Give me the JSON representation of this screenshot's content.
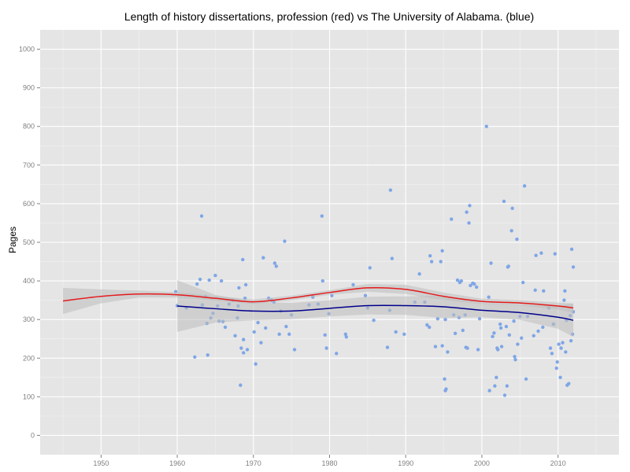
{
  "chart_data": {
    "type": "scatter",
    "title": "Length of history dissertations, profession (red) vs The University of Alabama. (blue)",
    "xlabel": "",
    "ylabel": "Pages",
    "xlim": [
      1942,
      2018
    ],
    "ylim": [
      -50,
      1050
    ],
    "x_ticks": [
      1950,
      1960,
      1970,
      1980,
      1990,
      2000,
      2010
    ],
    "y_ticks": [
      0,
      100,
      200,
      300,
      400,
      500,
      600,
      700,
      800,
      900,
      1000
    ],
    "grid": true,
    "colors": {
      "panel": "#e5e5e5",
      "grid_major": "#ffffff",
      "grid_minor": "#f2f2f2",
      "points": "#7fa6e6",
      "band": "#bdbdbd",
      "profession_line": "#e41a1c",
      "alabama_line": "#00008b"
    },
    "series": [
      {
        "type": "smooth",
        "color": "#e41a1c",
        "x": [
          1945,
          1950,
          1955,
          1960,
          1965,
          1970,
          1975,
          1980,
          1985,
          1990,
          1995,
          2000,
          2005,
          2010,
          2012
        ],
        "y": [
          348,
          360,
          366,
          364,
          355,
          346,
          356,
          370,
          382,
          378,
          360,
          347,
          343,
          335,
          330
        ],
        "band_x": [
          1945,
          1950,
          1955,
          1960,
          1965,
          1970,
          1975,
          1980,
          1985,
          1990,
          1995,
          2000,
          2005,
          2010,
          2012
        ],
        "band_lower": [
          314,
          342,
          357,
          357,
          349,
          340,
          350,
          364,
          372,
          366,
          350,
          340,
          336,
          326,
          318
        ],
        "band_upper": [
          382,
          378,
          375,
          371,
          361,
          352,
          362,
          376,
          392,
          390,
          370,
          354,
          350,
          344,
          342
        ]
      },
      {
        "type": "smooth",
        "color": "#00008b",
        "x": [
          1960,
          1965,
          1970,
          1975,
          1980,
          1985,
          1990,
          1995,
          2000,
          2005,
          2010,
          2012
        ],
        "y": [
          335,
          328,
          322,
          322,
          329,
          336,
          336,
          333,
          324,
          318,
          306,
          298
        ],
        "band_x": [
          1960,
          1965,
          1970,
          1975,
          1980,
          1985,
          1990,
          1995,
          2000,
          2005,
          2010,
          2012
        ],
        "band_lower": [
          268,
          292,
          298,
          301,
          308,
          313,
          312,
          304,
          306,
          299,
          276,
          255
        ],
        "band_upper": [
          402,
          364,
          346,
          343,
          350,
          359,
          360,
          362,
          342,
          337,
          336,
          341
        ]
      }
    ],
    "points": [
      {
        "x": 1959.8,
        "y": 372
      },
      {
        "x": 1960.0,
        "y": 336
      },
      {
        "x": 1961.2,
        "y": 330
      },
      {
        "x": 1962.3,
        "y": 203
      },
      {
        "x": 1962.6,
        "y": 392
      },
      {
        "x": 1963.0,
        "y": 404
      },
      {
        "x": 1963.2,
        "y": 568
      },
      {
        "x": 1963.3,
        "y": 338
      },
      {
        "x": 1963.7,
        "y": 360
      },
      {
        "x": 1963.9,
        "y": 290
      },
      {
        "x": 1964.0,
        "y": 208
      },
      {
        "x": 1964.2,
        "y": 402
      },
      {
        "x": 1964.4,
        "y": 304
      },
      {
        "x": 1964.7,
        "y": 316
      },
      {
        "x": 1965.0,
        "y": 414
      },
      {
        "x": 1965.3,
        "y": 335
      },
      {
        "x": 1965.5,
        "y": 296
      },
      {
        "x": 1965.8,
        "y": 400
      },
      {
        "x": 1966.0,
        "y": 295
      },
      {
        "x": 1966.3,
        "y": 280
      },
      {
        "x": 1966.8,
        "y": 340
      },
      {
        "x": 1967.3,
        "y": 350
      },
      {
        "x": 1967.6,
        "y": 258
      },
      {
        "x": 1967.9,
        "y": 304
      },
      {
        "x": 1968.0,
        "y": 335
      },
      {
        "x": 1968.1,
        "y": 382
      },
      {
        "x": 1968.3,
        "y": 130
      },
      {
        "x": 1968.4,
        "y": 226
      },
      {
        "x": 1968.6,
        "y": 455
      },
      {
        "x": 1968.7,
        "y": 214
      },
      {
        "x": 1968.9,
        "y": 355
      },
      {
        "x": 1969.0,
        "y": 390
      },
      {
        "x": 1969.2,
        "y": 222
      },
      {
        "x": 1968.7,
        "y": 248
      },
      {
        "x": 1970.1,
        "y": 268
      },
      {
        "x": 1970.3,
        "y": 185
      },
      {
        "x": 1970.6,
        "y": 292
      },
      {
        "x": 1971.0,
        "y": 240
      },
      {
        "x": 1971.3,
        "y": 460
      },
      {
        "x": 1971.6,
        "y": 278
      },
      {
        "x": 1972.0,
        "y": 355
      },
      {
        "x": 1972.4,
        "y": 350
      },
      {
        "x": 1972.7,
        "y": 345
      },
      {
        "x": 1972.8,
        "y": 446
      },
      {
        "x": 1973.0,
        "y": 438
      },
      {
        "x": 1973.4,
        "y": 262
      },
      {
        "x": 1973.6,
        "y": 322
      },
      {
        "x": 1974.1,
        "y": 503
      },
      {
        "x": 1974.3,
        "y": 282
      },
      {
        "x": 1974.7,
        "y": 262
      },
      {
        "x": 1975.0,
        "y": 312
      },
      {
        "x": 1975.4,
        "y": 222
      },
      {
        "x": 1977.3,
        "y": 338
      },
      {
        "x": 1977.8,
        "y": 358
      },
      {
        "x": 1978.5,
        "y": 340
      },
      {
        "x": 1979.0,
        "y": 568
      },
      {
        "x": 1979.1,
        "y": 400
      },
      {
        "x": 1979.4,
        "y": 260
      },
      {
        "x": 1979.6,
        "y": 226
      },
      {
        "x": 1979.9,
        "y": 315
      },
      {
        "x": 1980.3,
        "y": 362
      },
      {
        "x": 1980.9,
        "y": 212
      },
      {
        "x": 1982.1,
        "y": 262
      },
      {
        "x": 1982.2,
        "y": 255
      },
      {
        "x": 1983.1,
        "y": 390
      },
      {
        "x": 1984.7,
        "y": 362
      },
      {
        "x": 1985.0,
        "y": 330
      },
      {
        "x": 1985.3,
        "y": 434
      },
      {
        "x": 1985.8,
        "y": 298
      },
      {
        "x": 1987.6,
        "y": 228
      },
      {
        "x": 1987.9,
        "y": 324
      },
      {
        "x": 1988.0,
        "y": 635
      },
      {
        "x": 1988.2,
        "y": 458
      },
      {
        "x": 1988.7,
        "y": 268
      },
      {
        "x": 1989.8,
        "y": 262
      },
      {
        "x": 1991.2,
        "y": 345
      },
      {
        "x": 1991.8,
        "y": 418
      },
      {
        "x": 1992.5,
        "y": 345
      },
      {
        "x": 1992.8,
        "y": 286
      },
      {
        "x": 1993.1,
        "y": 280
      },
      {
        "x": 1993.2,
        "y": 465
      },
      {
        "x": 1993.4,
        "y": 450
      },
      {
        "x": 1993.9,
        "y": 230
      },
      {
        "x": 1994.2,
        "y": 302
      },
      {
        "x": 1994.6,
        "y": 450
      },
      {
        "x": 1994.8,
        "y": 478
      },
      {
        "x": 1994.8,
        "y": 232
      },
      {
        "x": 1995.1,
        "y": 146
      },
      {
        "x": 1995.2,
        "y": 300
      },
      {
        "x": 1995.2,
        "y": 116
      },
      {
        "x": 1995.3,
        "y": 120
      },
      {
        "x": 1995.5,
        "y": 216
      },
      {
        "x": 1996.0,
        "y": 560
      },
      {
        "x": 1996.3,
        "y": 312
      },
      {
        "x": 1996.5,
        "y": 264
      },
      {
        "x": 1996.8,
        "y": 402
      },
      {
        "x": 1997.0,
        "y": 305
      },
      {
        "x": 1997.1,
        "y": 396
      },
      {
        "x": 1997.3,
        "y": 400
      },
      {
        "x": 1997.5,
        "y": 272
      },
      {
        "x": 1997.8,
        "y": 312
      },
      {
        "x": 1997.9,
        "y": 228
      },
      {
        "x": 1998.0,
        "y": 578
      },
      {
        "x": 1998.1,
        "y": 226
      },
      {
        "x": 1998.3,
        "y": 550
      },
      {
        "x": 1998.4,
        "y": 595
      },
      {
        "x": 1998.5,
        "y": 388
      },
      {
        "x": 1998.8,
        "y": 394
      },
      {
        "x": 1999.0,
        "y": 392
      },
      {
        "x": 1999.3,
        "y": 384
      },
      {
        "x": 1999.5,
        "y": 222
      },
      {
        "x": 1999.7,
        "y": 302
      },
      {
        "x": 2000.6,
        "y": 800
      },
      {
        "x": 2000.9,
        "y": 358
      },
      {
        "x": 2001.0,
        "y": 116
      },
      {
        "x": 2001.2,
        "y": 446
      },
      {
        "x": 2001.4,
        "y": 256
      },
      {
        "x": 2001.6,
        "y": 265
      },
      {
        "x": 2001.7,
        "y": 128
      },
      {
        "x": 2001.9,
        "y": 150
      },
      {
        "x": 2002.0,
        "y": 226
      },
      {
        "x": 2002.1,
        "y": 222
      },
      {
        "x": 2002.4,
        "y": 288
      },
      {
        "x": 2002.5,
        "y": 278
      },
      {
        "x": 2002.6,
        "y": 230
      },
      {
        "x": 2002.9,
        "y": 606
      },
      {
        "x": 2003.0,
        "y": 104
      },
      {
        "x": 2003.2,
        "y": 282
      },
      {
        "x": 2003.3,
        "y": 128
      },
      {
        "x": 2003.4,
        "y": 436
      },
      {
        "x": 2003.5,
        "y": 438
      },
      {
        "x": 2003.6,
        "y": 260
      },
      {
        "x": 2003.9,
        "y": 530
      },
      {
        "x": 2004.0,
        "y": 588
      },
      {
        "x": 2004.2,
        "y": 296
      },
      {
        "x": 2004.3,
        "y": 204
      },
      {
        "x": 2004.4,
        "y": 196
      },
      {
        "x": 2004.6,
        "y": 508
      },
      {
        "x": 2004.7,
        "y": 236
      },
      {
        "x": 2005.0,
        "y": 308
      },
      {
        "x": 2005.2,
        "y": 252
      },
      {
        "x": 2005.4,
        "y": 396
      },
      {
        "x": 2005.6,
        "y": 646
      },
      {
        "x": 2005.8,
        "y": 146
      },
      {
        "x": 2006.0,
        "y": 308
      },
      {
        "x": 2006.8,
        "y": 258
      },
      {
        "x": 2007.0,
        "y": 376
      },
      {
        "x": 2007.1,
        "y": 466
      },
      {
        "x": 2007.4,
        "y": 270
      },
      {
        "x": 2007.8,
        "y": 472
      },
      {
        "x": 2008.0,
        "y": 280
      },
      {
        "x": 2008.1,
        "y": 374
      },
      {
        "x": 2008.8,
        "y": 330
      },
      {
        "x": 2009.0,
        "y": 226
      },
      {
        "x": 2009.2,
        "y": 212
      },
      {
        "x": 2009.4,
        "y": 288
      },
      {
        "x": 2009.6,
        "y": 470
      },
      {
        "x": 2009.8,
        "y": 174
      },
      {
        "x": 2009.9,
        "y": 190
      },
      {
        "x": 2010.1,
        "y": 236
      },
      {
        "x": 2010.3,
        "y": 150
      },
      {
        "x": 2010.4,
        "y": 226
      },
      {
        "x": 2010.6,
        "y": 240
      },
      {
        "x": 2010.8,
        "y": 350
      },
      {
        "x": 2010.9,
        "y": 374
      },
      {
        "x": 2011.0,
        "y": 216
      },
      {
        "x": 2011.1,
        "y": 298
      },
      {
        "x": 2011.2,
        "y": 130
      },
      {
        "x": 2011.4,
        "y": 134
      },
      {
        "x": 2011.6,
        "y": 310
      },
      {
        "x": 2011.8,
        "y": 482
      },
      {
        "x": 2011.9,
        "y": 262
      },
      {
        "x": 2012.0,
        "y": 436
      },
      {
        "x": 2012.0,
        "y": 320
      },
      {
        "x": 2011.7,
        "y": 245
      }
    ]
  }
}
